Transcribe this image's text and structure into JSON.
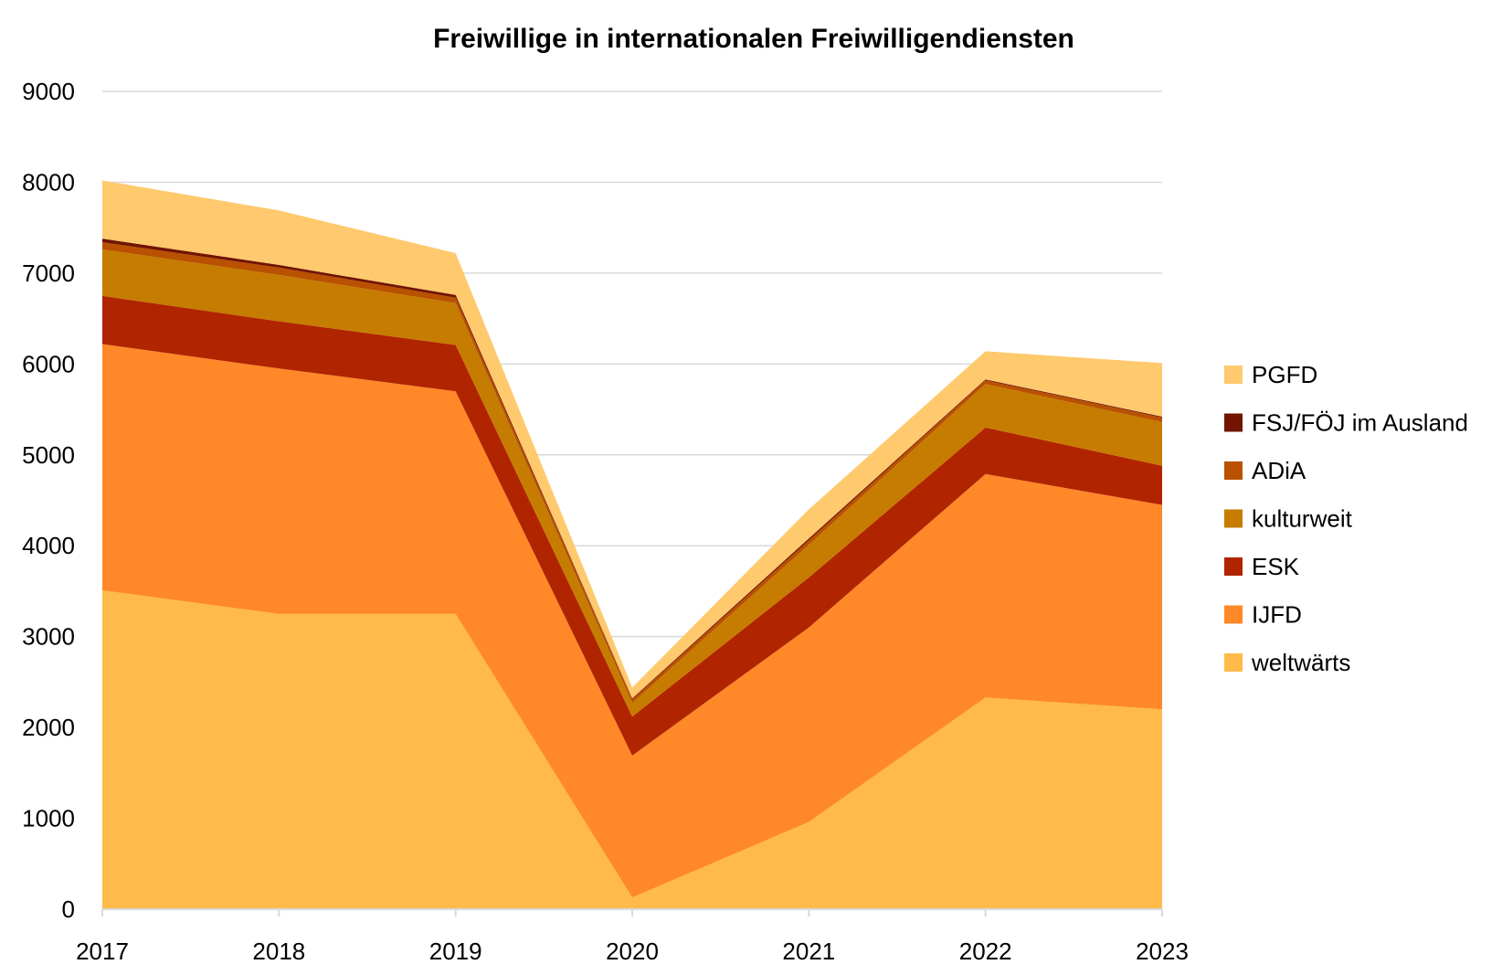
{
  "chart_data": {
    "type": "area",
    "stacked": true,
    "title": "Freiwillige in internationalen Freiwilligendiensten",
    "xlabel": "",
    "ylabel": "",
    "x": [
      "2017",
      "2018",
      "2019",
      "2020",
      "2021",
      "2022",
      "2023"
    ],
    "ylim": [
      0,
      9000
    ],
    "yticks": [
      "0",
      "1000",
      "2000",
      "3000",
      "4000",
      "5000",
      "6000",
      "7000",
      "8000",
      "9000"
    ],
    "grid": true,
    "legend_position": "right",
    "series": [
      {
        "name": "weltwärts",
        "color": "#FFBA4A",
        "values": [
          3510,
          3250,
          3250,
          130,
          960,
          2330,
          2200
        ]
      },
      {
        "name": "IJFD",
        "color": "#FF8829",
        "values": [
          2710,
          2700,
          2450,
          1560,
          2140,
          2460,
          2250
        ]
      },
      {
        "name": "ESK",
        "color": "#B12400",
        "values": [
          530,
          520,
          510,
          430,
          550,
          510,
          430
        ]
      },
      {
        "name": "kulturweit",
        "color": "#C67C00",
        "values": [
          510,
          510,
          460,
          150,
          360,
          480,
          480
        ]
      },
      {
        "name": "ADiA",
        "color": "#B95100",
        "values": [
          80,
          80,
          60,
          40,
          50,
          40,
          50
        ]
      },
      {
        "name": "FSJ/FÖJ im Ausland",
        "color": "#721400",
        "values": [
          40,
          30,
          30,
          10,
          20,
          10,
          10
        ]
      },
      {
        "name": "PGFD",
        "color": "#FFC96E",
        "values": [
          640,
          600,
          460,
          120,
          320,
          310,
          590
        ]
      }
    ]
  }
}
